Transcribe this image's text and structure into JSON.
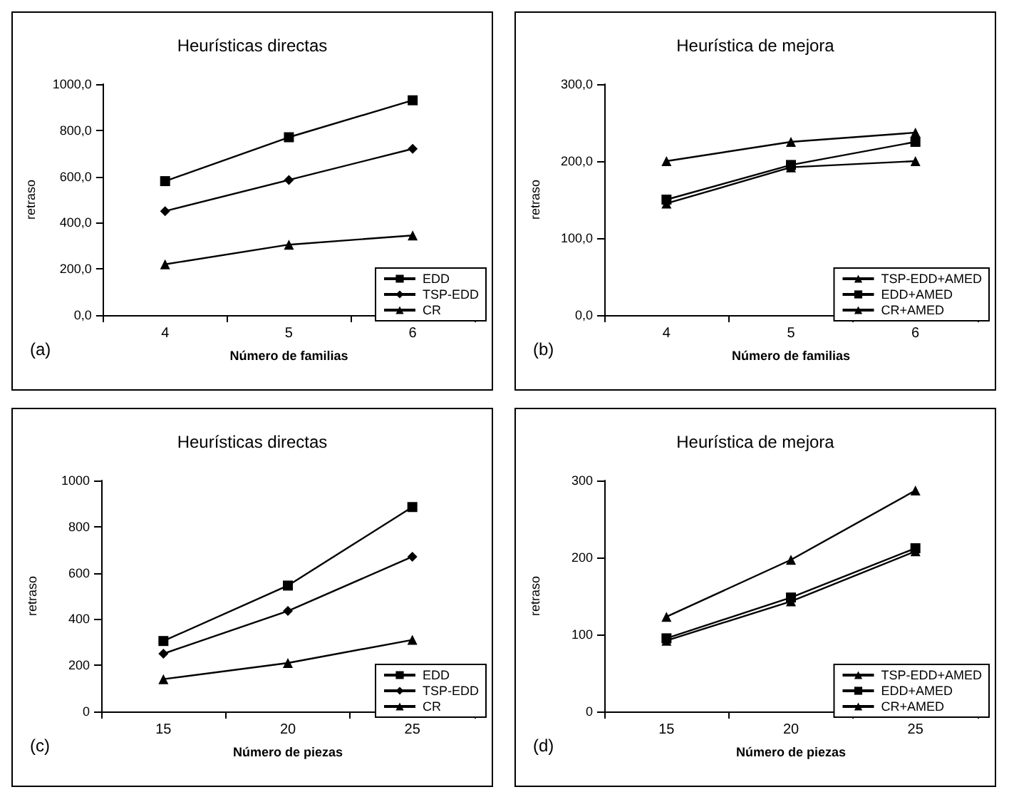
{
  "chart_data": [
    {
      "type": "line",
      "title": "Heurísticas directas",
      "xlabel": "Número de familias",
      "ylabel": "retraso",
      "annotations": [
        "(a)"
      ],
      "categories": [
        "4",
        "5",
        "6"
      ],
      "series": [
        {
          "name": "EDD",
          "color": "#000000",
          "marker": "square",
          "values": [
            580,
            770,
            930
          ]
        },
        {
          "name": "TSP-EDD",
          "color": "#000000",
          "marker": "diamond",
          "values": [
            450,
            585,
            720
          ]
        },
        {
          "name": "CR",
          "color": "#000000",
          "marker": "triangle",
          "values": [
            220,
            305,
            345
          ]
        }
      ],
      "ylim": [
        0,
        1000
      ],
      "yticks": [
        {
          "value": 0,
          "label": "0,0"
        },
        {
          "value": 200,
          "label": "200,0"
        },
        {
          "value": 400,
          "label": "400,0"
        },
        {
          "value": 600,
          "label": "600,0"
        },
        {
          "value": 800,
          "label": "800,0"
        },
        {
          "value": 1000,
          "label": "1000,0"
        }
      ],
      "grid": false,
      "legend": "bottom right"
    },
    {
      "type": "line",
      "title": "Heurística de mejora",
      "xlabel": "Número de familias",
      "ylabel": "retraso",
      "annotations": [
        "(b)"
      ],
      "categories": [
        "4",
        "5",
        "6"
      ],
      "series": [
        {
          "name": "TSP-EDD+AMED",
          "color": "#000000",
          "marker": "triangle",
          "values": [
            200,
            225,
            237
          ]
        },
        {
          "name": "EDD+AMED",
          "color": "#000000",
          "marker": "square",
          "values": [
            150,
            195,
            225
          ]
        },
        {
          "name": "CR+AMED",
          "color": "#000000",
          "marker": "triangle",
          "values": [
            145,
            192,
            200
          ]
        }
      ],
      "ylim": [
        0,
        300
      ],
      "yticks": [
        {
          "value": 0,
          "label": "0,0"
        },
        {
          "value": 100,
          "label": "100,0"
        },
        {
          "value": 200,
          "label": "200,0"
        },
        {
          "value": 300,
          "label": "300,0"
        }
      ],
      "grid": false,
      "legend": "bottom right"
    },
    {
      "type": "line",
      "title": "Heurísticas directas",
      "xlabel": "Número de piezas",
      "ylabel": "retraso",
      "annotations": [
        "(c)"
      ],
      "categories": [
        "15",
        "20",
        "25"
      ],
      "series": [
        {
          "name": "EDD",
          "color": "#000000",
          "marker": "square",
          "values": [
            305,
            545,
            885
          ]
        },
        {
          "name": "TSP-EDD",
          "color": "#000000",
          "marker": "diamond",
          "values": [
            250,
            435,
            670
          ]
        },
        {
          "name": "CR",
          "color": "#000000",
          "marker": "triangle",
          "values": [
            140,
            210,
            310
          ]
        }
      ],
      "ylim": [
        0,
        1000
      ],
      "yticks": [
        0,
        200,
        400,
        600,
        800,
        1000
      ],
      "grid": false,
      "legend": "bottom right"
    },
    {
      "type": "line",
      "title": "Heurística de mejora",
      "xlabel": "Número de piezas",
      "ylabel": "retraso",
      "annotations": [
        "(d)"
      ],
      "categories": [
        "15",
        "20",
        "25"
      ],
      "series": [
        {
          "name": "TSP-EDD+AMED",
          "color": "#000000",
          "marker": "triangle",
          "values": [
            123,
            197,
            287
          ]
        },
        {
          "name": "EDD+AMED",
          "color": "#000000",
          "marker": "square",
          "values": [
            95,
            148,
            212
          ]
        },
        {
          "name": "CR+AMED",
          "color": "#000000",
          "marker": "triangle",
          "values": [
            92,
            143,
            208
          ]
        }
      ],
      "ylim": [
        0,
        300
      ],
      "yticks": [
        0,
        100,
        200,
        300
      ],
      "grid": false,
      "legend": "bottom right"
    }
  ]
}
